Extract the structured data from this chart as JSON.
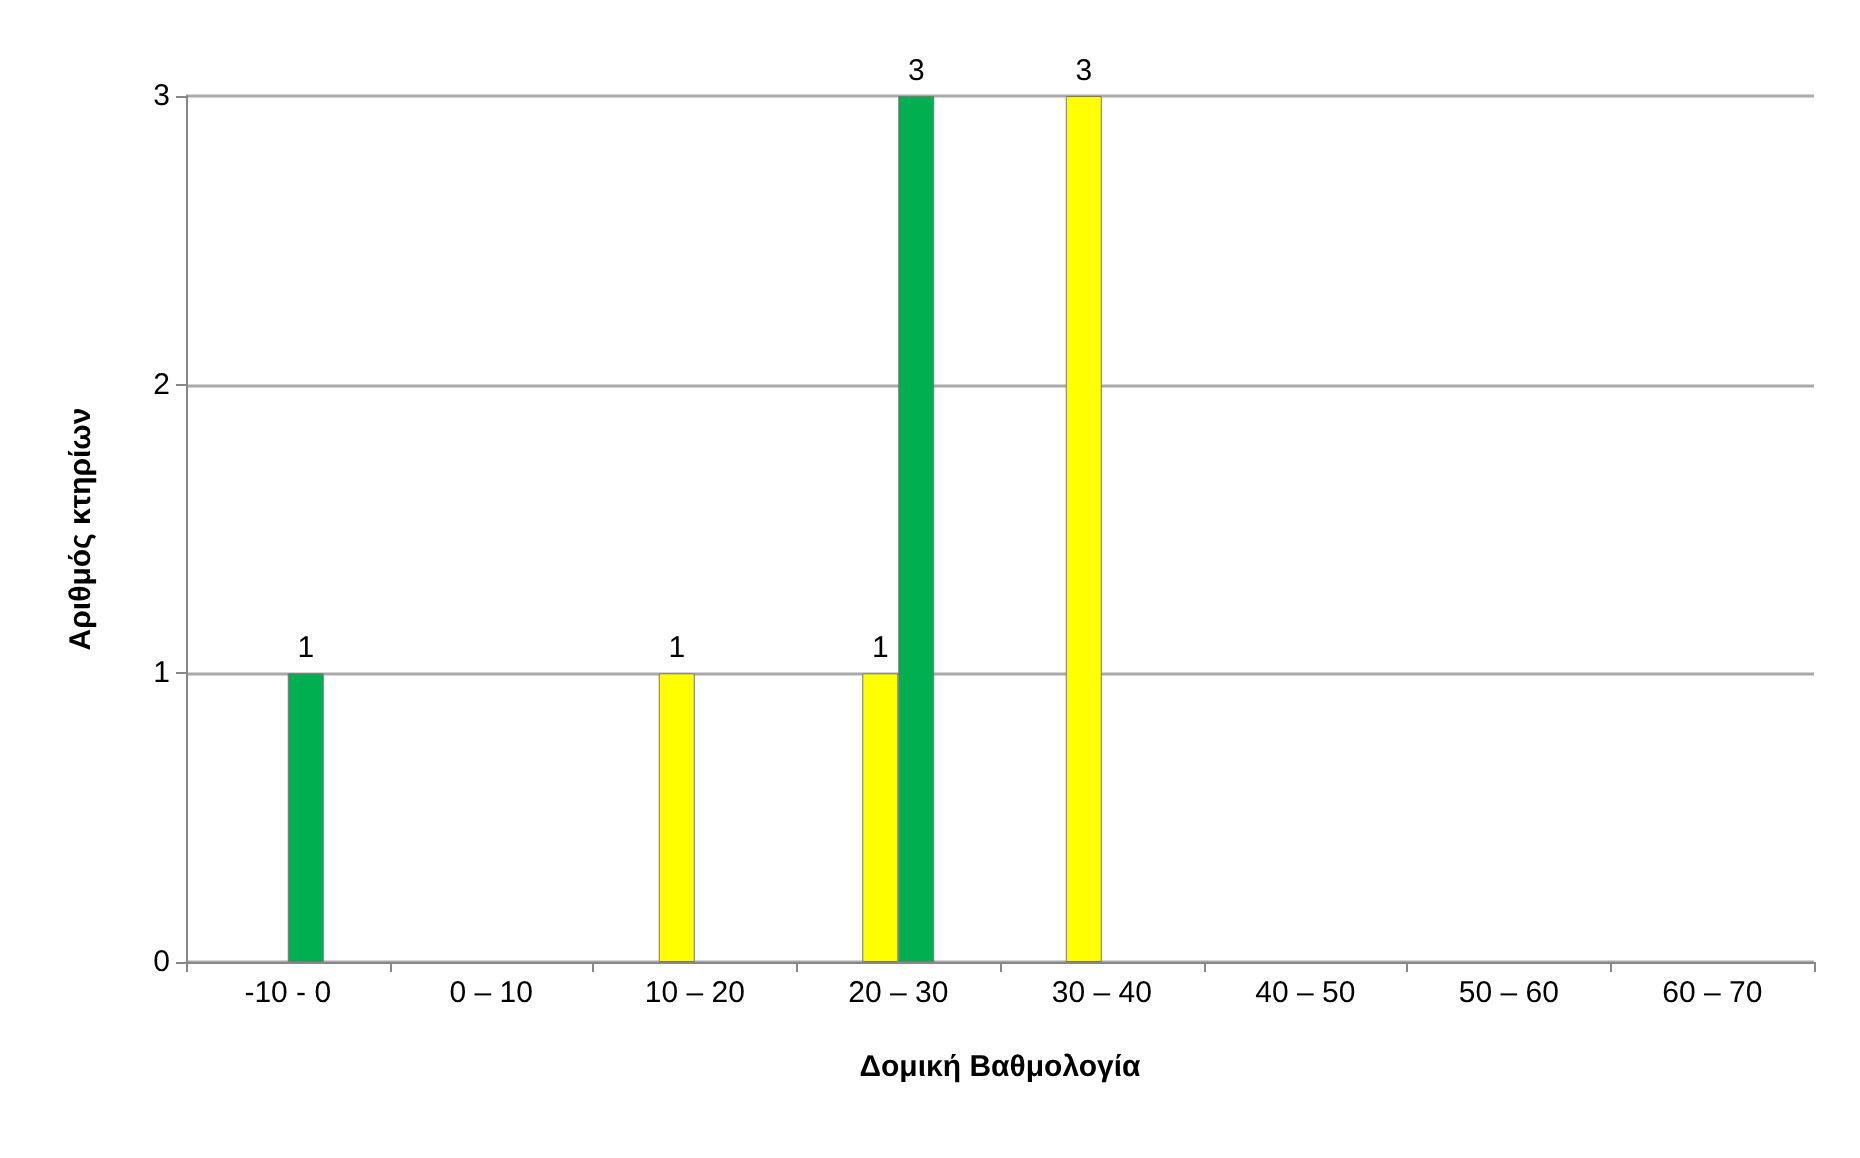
{
  "chart_data": {
    "type": "bar",
    "xlabel": "Δομική Βαθμολογία",
    "ylabel": "Αριθμός κτηρίων",
    "categories": [
      "-10 - 0",
      "0 – 10",
      "10 – 20",
      "20 – 30",
      "30 – 40",
      "40 – 50",
      "50 – 60",
      "60 – 70"
    ],
    "series": [
      {
        "color": "#ffff00",
        "values": [
          null,
          null,
          1,
          1,
          3,
          null,
          null,
          null
        ]
      },
      {
        "color": "#00b050",
        "values": [
          1,
          null,
          null,
          3,
          null,
          null,
          null,
          null
        ]
      }
    ],
    "ylim": [
      0,
      3
    ],
    "yticks": [
      0,
      1,
      2,
      3
    ],
    "grid": "y",
    "data_labels": true
  }
}
